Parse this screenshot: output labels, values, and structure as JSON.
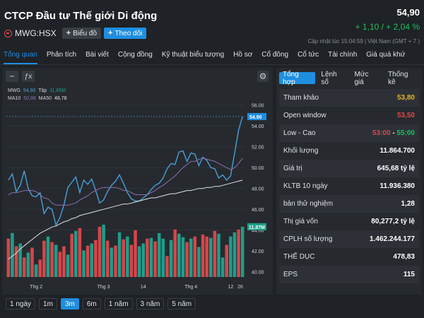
{
  "header": {
    "company": "CTCP Đầu tư Thế giới Di động",
    "ticker": "MWG:HSX",
    "chart_btn": "Biểu đồ",
    "follow_btn": "Theo dõi",
    "price": "54,90",
    "change": "+ 1,10 / + 2,04 %",
    "updated": "Cập nhật lúc   15:04:59 | Việt Nam (GMT + 7 )"
  },
  "tabs": [
    "Tổng quan",
    "Phân tích",
    "Bài viết",
    "Cộng đồng",
    "Kỹ thuật biểu tượng",
    "Hồ sơ",
    "Cổ đông",
    "Cổ tức",
    "Tài chính",
    "Giá quá khứ"
  ],
  "legend": {
    "mwg_label": "MWG",
    "mwg_value": "54,90",
    "vol_label": "Tập",
    "vol_value": "11,86M",
    "ma10_label": "MA10",
    "ma10_value": "50,88",
    "ma50_label": "MA50",
    "ma50_value": "48,78"
  },
  "ranges": [
    "1 ngày",
    "1m",
    "3m",
    "6m",
    "1 năm",
    "3 năm",
    "5 năm"
  ],
  "stat_tabs": [
    "Tổng hợp",
    "Lệnh số",
    "Mức giá",
    "Thống kê"
  ],
  "stats": [
    {
      "label": "Tham khảo",
      "value": "53,80"
    },
    {
      "label": "Open window",
      "value": "53,50"
    },
    {
      "label": "Low - Cao",
      "low": "53:00",
      "high": "55:00"
    },
    {
      "label": "Khối lượng",
      "value": "11.864.700"
    },
    {
      "label": "Giá trị",
      "value": "645,68 tỷ lệ"
    },
    {
      "label": "KLTB 10 ngày",
      "value": "11.936.380"
    },
    {
      "label": "bản thử nghiệm",
      "value": "1,28"
    },
    {
      "label": "Thị giá vốn",
      "value": "80,277,2 tỷ lệ"
    },
    {
      "label": "CPLH số lượng",
      "value": "1.462.244.177"
    },
    {
      "label": "THỂ DỤC",
      "value": "478,83"
    },
    {
      "label": "EPS",
      "value": "115"
    }
  ],
  "colors": {
    "accent": "#1f8ee0",
    "up": "#19c15c",
    "down": "#e0484a",
    "ref": "#e6b422",
    "price_line": "#4a9fd8",
    "ma10": "#8a6fb0",
    "ma50": "#dfe3e6",
    "vol_up": "#1f9e8a",
    "vol_down": "#d6464a"
  },
  "chart_data": {
    "type": "line",
    "price_axis": {
      "ticks": [
        "56.00",
        "54.00",
        "52.00",
        "50.00",
        "48.00",
        "46.00",
        "44.00",
        "42.00",
        "40.00"
      ],
      "ylim": [
        39.5,
        57
      ]
    },
    "x_labels": [
      "Thg 2",
      "Thg 3",
      "14",
      "Thg 4",
      "12",
      "26"
    ],
    "last_price_label": "54.90",
    "last_volume_label": "11.87M",
    "series": [
      {
        "name": "MWG",
        "values": [
          48.8,
          49.4,
          47.7,
          48.3,
          49.7,
          48.0,
          47.3,
          47.2,
          47.6,
          45.6,
          46.2,
          46.0,
          44.5,
          45.2,
          46.4,
          48.1,
          48.6,
          49.1,
          47.6,
          48.8,
          48.4,
          48.9,
          47.8,
          46.6,
          46.9,
          47.7,
          48.3,
          48.7,
          49.3,
          48.5,
          47.6,
          47.0,
          46.8,
          46.8,
          47.1,
          47.4,
          47.9,
          48.3,
          48.5,
          49.0,
          49.9,
          50.4,
          50.3,
          51.5,
          51.6,
          50.6,
          51.4,
          51.3,
          50.2,
          51.0,
          50.7,
          50.0,
          49.9,
          49.0,
          49.3,
          48.8,
          49.2,
          51.4,
          53.6,
          54.9
        ]
      },
      {
        "name": "MA10",
        "values": [
          47.4,
          47.6,
          47.6,
          47.7,
          47.8,
          47.8,
          47.8,
          47.7,
          47.4,
          47.1,
          47.0,
          46.6,
          46.4,
          46.4,
          46.4,
          46.4,
          46.5,
          46.6,
          46.9,
          47.1,
          47.3,
          47.6,
          47.8,
          48.0,
          48.1,
          48.1,
          48.1,
          48.1,
          48.0,
          47.8,
          47.8,
          47.6,
          47.4,
          47.4,
          47.4,
          47.4,
          47.6,
          47.8,
          48.1,
          48.3,
          48.6,
          48.9,
          49.2,
          49.6,
          50.0,
          50.3,
          50.6,
          50.6,
          50.8,
          50.9,
          50.8,
          50.7,
          50.6,
          50.4,
          50.2,
          50.0,
          49.8,
          50.0,
          50.4,
          50.9
        ]
      },
      {
        "name": "MA50",
        "values": [
          41.2,
          41.5,
          41.8,
          42.2,
          42.5,
          42.8,
          43.1,
          43.4,
          43.7,
          43.9,
          44.1,
          44.3,
          44.4,
          44.6,
          44.8,
          44.9,
          45.1,
          45.2,
          45.4,
          45.5,
          45.6,
          45.7,
          45.8,
          45.9,
          46.0,
          46.1,
          46.2,
          46.3,
          46.4,
          46.5,
          46.5,
          46.6,
          46.7,
          46.8,
          46.9,
          47.0,
          47.1,
          47.1,
          47.2,
          47.3,
          47.4,
          47.5,
          47.5,
          47.6,
          47.7,
          47.8,
          47.8,
          47.9,
          48.0,
          48.0,
          48.1,
          48.1,
          48.2,
          48.2,
          48.3,
          48.4,
          48.5,
          48.6,
          48.7,
          48.8
        ]
      }
    ],
    "volume": [
      0.55,
      0.63,
      0.44,
      0.48,
      0.28,
      0.35,
      0.42,
      0.18,
      0.25,
      0.52,
      0.58,
      0.5,
      0.46,
      0.36,
      0.44,
      0.32,
      0.62,
      0.66,
      0.7,
      0.38,
      0.45,
      0.48,
      0.53,
      0.72,
      0.75,
      0.52,
      0.42,
      0.45,
      0.64,
      0.54,
      0.58,
      0.46,
      0.67,
      0.44,
      0.48,
      0.55,
      0.56,
      0.51,
      0.63,
      0.55,
      0.3,
      0.53,
      0.68,
      0.62,
      0.57,
      0.5,
      0.55,
      0.58,
      0.43,
      0.61,
      0.58,
      0.56,
      0.66,
      0.62,
      0.28,
      0.46,
      0.58,
      0.64,
      0.68,
      0.72
    ],
    "volume_direction": [
      "down",
      "up",
      "down",
      "up",
      "down",
      "up",
      "down",
      "up",
      "down",
      "down",
      "up",
      "down",
      "up",
      "down",
      "down",
      "up",
      "down",
      "up",
      "down",
      "up",
      "down",
      "up",
      "down",
      "down",
      "up",
      "down",
      "up",
      "down",
      "up",
      "down",
      "up",
      "down",
      "down",
      "up",
      "up",
      "down",
      "up",
      "down",
      "up",
      "up",
      "down",
      "up",
      "down",
      "up",
      "up",
      "down",
      "up",
      "down",
      "up",
      "down",
      "down",
      "up",
      "down",
      "up",
      "up",
      "down",
      "up",
      "up",
      "down",
      "up"
    ]
  }
}
